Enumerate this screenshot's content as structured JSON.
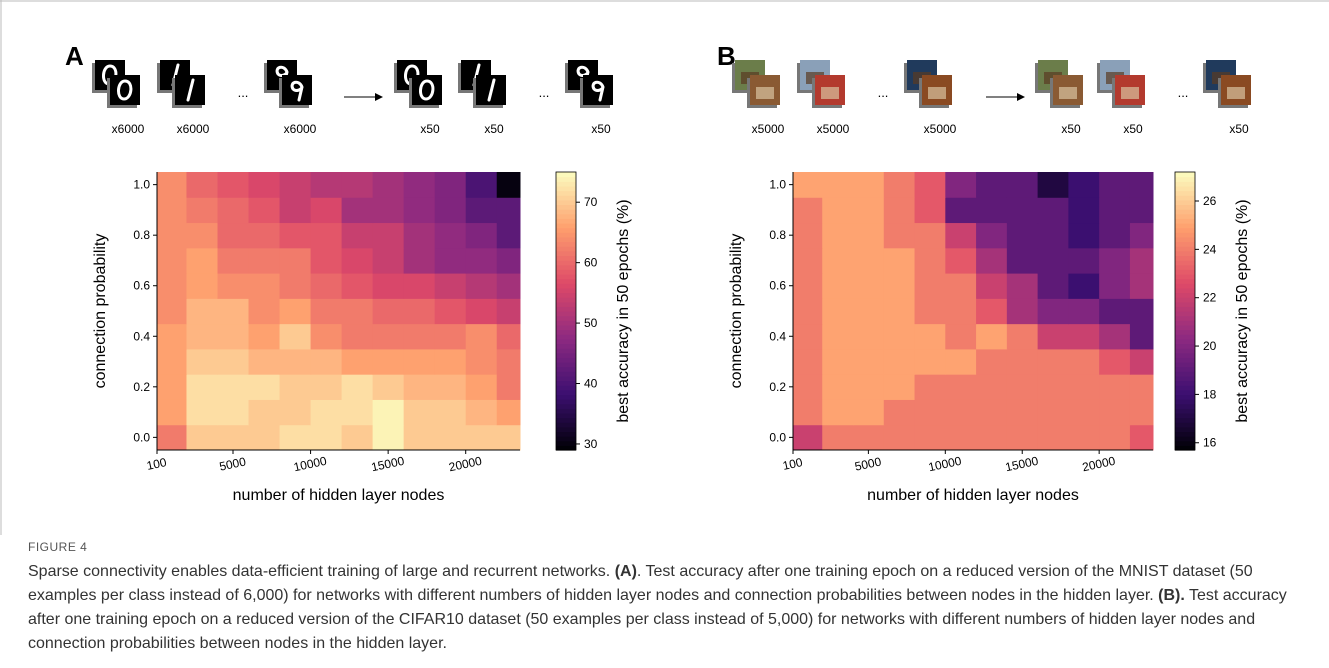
{
  "panels": [
    {
      "label": "A",
      "counts_before": [
        "x6000",
        "x6000",
        "x6000"
      ],
      "counts_after": [
        "x50",
        "x50",
        "x50"
      ],
      "ellipsis": [
        "...",
        "..."
      ]
    },
    {
      "label": "B",
      "counts_before": [
        "x5000",
        "x5000",
        "x5000"
      ],
      "counts_after": [
        "x50",
        "x50",
        "x50"
      ],
      "ellipsis": [
        "...",
        "..."
      ]
    }
  ],
  "chart_data": [
    {
      "type": "heatmap",
      "xlabel": "number of hidden layer nodes",
      "ylabel": "connection probability",
      "colorbar_label": "best accuracy in 50 epochs (%)",
      "colormap": [
        "#000004",
        "#3b0f70",
        "#8c2981",
        "#de4968",
        "#fe9f6d",
        "#fcfdbf"
      ],
      "x_bins": [
        100,
        2000,
        4000,
        6000,
        8000,
        10000,
        12000,
        14000,
        16000,
        18000,
        20000,
        22000,
        23500
      ],
      "y": [
        0.0,
        0.1,
        0.2,
        0.3,
        0.4,
        0.5,
        0.6,
        0.7,
        0.8,
        0.9,
        1.0
      ],
      "z": [
        [
          62,
          70,
          70,
          70,
          72,
          72,
          70,
          74,
          70,
          70,
          70,
          70
        ],
        [
          66,
          72,
          72,
          70,
          70,
          72,
          72,
          74,
          70,
          70,
          68,
          66
        ],
        [
          66,
          72,
          72,
          72,
          70,
          70,
          72,
          70,
          68,
          68,
          66,
          62
        ],
        [
          66,
          70,
          70,
          68,
          68,
          68,
          66,
          66,
          66,
          66,
          64,
          62
        ],
        [
          66,
          68,
          68,
          66,
          70,
          64,
          62,
          62,
          62,
          62,
          64,
          60
        ],
        [
          64,
          68,
          68,
          64,
          66,
          62,
          62,
          60,
          60,
          58,
          56,
          54
        ],
        [
          64,
          66,
          64,
          64,
          62,
          60,
          58,
          56,
          56,
          54,
          52,
          50
        ],
        [
          64,
          66,
          62,
          62,
          62,
          58,
          56,
          54,
          50,
          48,
          48,
          46
        ],
        [
          64,
          64,
          60,
          60,
          58,
          58,
          54,
          54,
          50,
          48,
          46,
          42
        ],
        [
          64,
          62,
          60,
          58,
          54,
          56,
          50,
          50,
          48,
          46,
          42,
          42
        ],
        [
          64,
          60,
          58,
          56,
          54,
          52,
          52,
          50,
          48,
          46,
          40,
          30
        ]
      ],
      "xlim": [
        100,
        23500
      ],
      "ylim": [
        -0.05,
        1.05
      ],
      "xticks": [
        100,
        5000,
        10000,
        15000,
        20000
      ],
      "yticks": [
        {
          "value": 0,
          "label": "0.0"
        },
        0.2,
        0.4,
        0.6,
        0.8,
        {
          "value": 1,
          "label": "1.0"
        }
      ],
      "clim": [
        29,
        75
      ],
      "cticks": [
        30,
        40,
        50,
        60,
        70
      ]
    },
    {
      "type": "heatmap",
      "xlabel": "number of hidden layer nodes",
      "ylabel": "connection probability",
      "colorbar_label": "best accuracy in 50 epochs (%)",
      "colormap": [
        "#000004",
        "#3b0f70",
        "#8c2981",
        "#de4968",
        "#fe9f6d",
        "#fcfdbf"
      ],
      "x_bins": [
        100,
        2000,
        4000,
        6000,
        8000,
        10000,
        12000,
        14000,
        16000,
        18000,
        20000,
        22000,
        23500
      ],
      "y": [
        0.0,
        0.1,
        0.2,
        0.3,
        0.4,
        0.5,
        0.6,
        0.7,
        0.8,
        0.9,
        1.0
      ],
      "z": [
        [
          22,
          24,
          24,
          24,
          24,
          24,
          24,
          24,
          24,
          24,
          24,
          23
        ],
        [
          24,
          25,
          25,
          24,
          24,
          24,
          24,
          24,
          24,
          24,
          24,
          24
        ],
        [
          24,
          25,
          25,
          25,
          24,
          24,
          24,
          24,
          24,
          24,
          24,
          24
        ],
        [
          24,
          25,
          25,
          25,
          25,
          25,
          24,
          24,
          24,
          24,
          23,
          22
        ],
        [
          24,
          25,
          25,
          25,
          25,
          24,
          25,
          24,
          22,
          22,
          21,
          19
        ],
        [
          24,
          25,
          25,
          25,
          24,
          24,
          23,
          21,
          20,
          20,
          19,
          19
        ],
        [
          24,
          25,
          25,
          25,
          24,
          24,
          22,
          21,
          19,
          18,
          20,
          21
        ],
        [
          24,
          25,
          25,
          25,
          24,
          23,
          21,
          19,
          19,
          19,
          20,
          21
        ],
        [
          24,
          25,
          25,
          24,
          24,
          22,
          20,
          19,
          19,
          18,
          19,
          20
        ],
        [
          24,
          25,
          25,
          24,
          23,
          19,
          19,
          19,
          19,
          18,
          19,
          19
        ],
        [
          25,
          25,
          25,
          24,
          23,
          20,
          19,
          19,
          17,
          18,
          19,
          19
        ]
      ],
      "xlim": [
        100,
        23500
      ],
      "ylim": [
        -0.05,
        1.05
      ],
      "xticks": [
        100,
        5000,
        10000,
        15000,
        20000
      ],
      "yticks": [
        {
          "value": 0,
          "label": "0.0"
        },
        0.2,
        0.4,
        0.6,
        0.8,
        {
          "value": 1,
          "label": "1.0"
        }
      ],
      "clim": [
        15.7,
        27.2
      ],
      "cticks": [
        16,
        18,
        20,
        22,
        24,
        26
      ]
    }
  ],
  "caption": {
    "heading": "FIGURE 4",
    "segments": [
      {
        "text": "Sparse connectivity enables data-efficient training of large and recurrent networks. ",
        "bold": false
      },
      {
        "text": "(A)",
        "bold": true
      },
      {
        "text": ". Test accuracy after one training epoch on a reduced version of the MNIST dataset (50 examples per class instead of 6,000) for networks with different numbers of hidden layer nodes and connection probabilities between nodes in the hidden layer. ",
        "bold": false
      },
      {
        "text": "(B).",
        "bold": true
      },
      {
        "text": " Test accuracy after one training epoch on a reduced version of the CIFAR10 dataset (50 examples per class instead of 5,000) for networks with different numbers of hidden layer nodes and connection probabilities between nodes in the hidden layer.",
        "bold": false
      }
    ]
  }
}
